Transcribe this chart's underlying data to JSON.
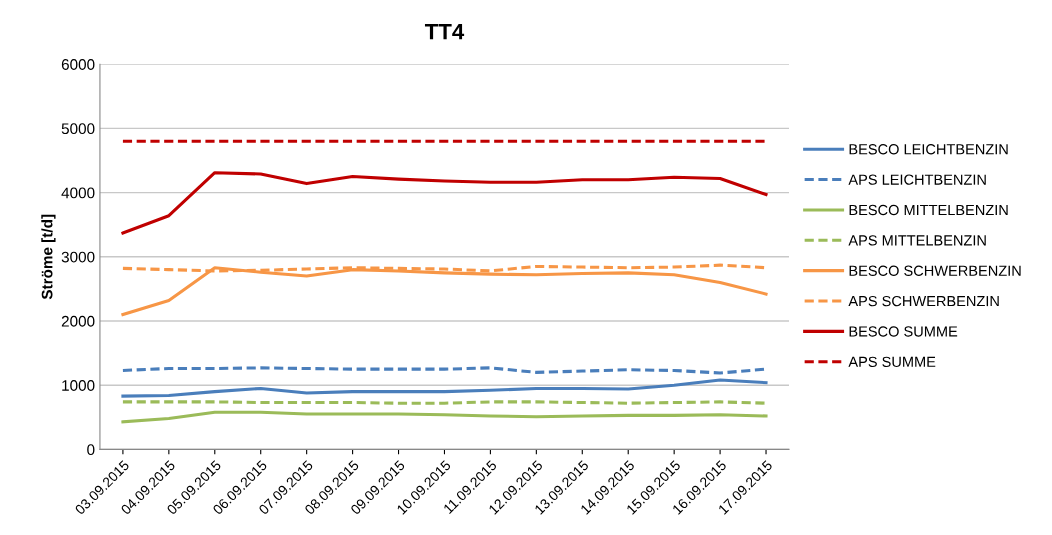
{
  "chart_data": {
    "type": "line",
    "title": "TT4",
    "ylabel": "Ströme [t/d]",
    "categories": [
      "03.09.2015",
      "04.09.2015",
      "05.09.2015",
      "06.09.2015",
      "07.09.2015",
      "08.09.2015",
      "09.09.2015",
      "10.09.2015",
      "11.09.2015",
      "12.09.2015",
      "13.09.2015",
      "14.09.2015",
      "15.09.2015",
      "16.09.2015",
      "17.09.2015"
    ],
    "series": [
      {
        "name": "BESCO LEICHTBENZIN",
        "color": "#4a7ebb",
        "line_style": "solid",
        "values": [
          830,
          840,
          900,
          950,
          880,
          900,
          900,
          900,
          920,
          950,
          950,
          940,
          1000,
          1080,
          1040
        ]
      },
      {
        "name": "APS LEICHTBENZIN",
        "color": "#4a7ebb",
        "line_style": "dashed",
        "values": [
          1230,
          1260,
          1260,
          1270,
          1260,
          1250,
          1250,
          1250,
          1270,
          1200,
          1220,
          1240,
          1230,
          1190,
          1250
        ]
      },
      {
        "name": "BESCO MITTELBENZIN",
        "color": "#9bbb59",
        "line_style": "solid",
        "values": [
          430,
          480,
          580,
          580,
          550,
          550,
          550,
          540,
          520,
          510,
          520,
          530,
          530,
          540,
          520
        ]
      },
      {
        "name": "APS MITTELBENZIN",
        "color": "#9bbb59",
        "line_style": "dashed",
        "values": [
          740,
          740,
          740,
          730,
          730,
          730,
          720,
          720,
          740,
          740,
          730,
          720,
          730,
          740,
          720
        ]
      },
      {
        "name": "BESCO SCHWERBENZIN",
        "color": "#f79646",
        "line_style": "solid",
        "values": [
          2100,
          2320,
          2830,
          2760,
          2700,
          2800,
          2780,
          2750,
          2730,
          2720,
          2740,
          2750,
          2720,
          2600,
          2420
        ]
      },
      {
        "name": "APS SCHWERBENZIN",
        "color": "#f79646",
        "line_style": "dashed",
        "values": [
          2820,
          2800,
          2780,
          2790,
          2810,
          2830,
          2820,
          2810,
          2780,
          2850,
          2840,
          2830,
          2840,
          2870,
          2830
        ]
      },
      {
        "name": "BESCO SUMME",
        "color": "#c00000",
        "line_style": "solid",
        "values": [
          3370,
          3640,
          4310,
          4290,
          4140,
          4250,
          4210,
          4180,
          4160,
          4160,
          4200,
          4200,
          4240,
          4220,
          3970
        ]
      },
      {
        "name": "APS SUMME",
        "color": "#c00000",
        "line_style": "dashed",
        "values": [
          4800,
          4800,
          4800,
          4800,
          4800,
          4800,
          4800,
          4800,
          4800,
          4800,
          4800,
          4800,
          4800,
          4800,
          4800
        ]
      }
    ],
    "ylim": [
      0,
      6000
    ],
    "yticks": [
      0,
      1000,
      2000,
      3000,
      4000,
      5000,
      6000
    ],
    "grid": "y",
    "legend": "right",
    "marker": "none"
  }
}
